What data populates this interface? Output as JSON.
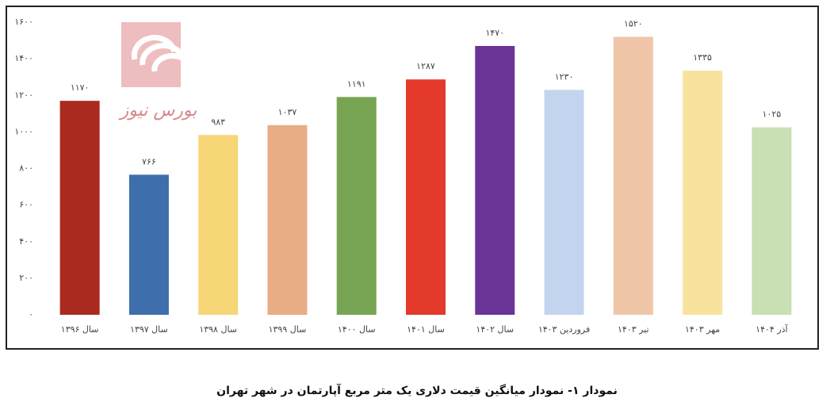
{
  "chart_data": {
    "type": "bar",
    "title": "نمودار ۱- نمودار میانگین قیمت دلاری یک متر مربع آپارتمان در شهر تهران",
    "watermark": "بورس نیوز",
    "categories": [
      "سال ۱۳۹۶",
      "سال ۱۳۹۷",
      "سال ۱۳۹۸",
      "سال ۱۳۹۹",
      "سال ۱۴۰۰",
      "سال ۱۴۰۱",
      "سال ۱۴۰۲",
      "فروردین ۱۴۰۳",
      "تیر ۱۴۰۳",
      "مهر ۱۴۰۳",
      "آذر ۱۴۰۴"
    ],
    "values": [
      1170,
      766,
      983,
      1037,
      1191,
      1287,
      1470,
      1230,
      1520,
      1335,
      1025
    ],
    "value_labels": [
      "۱۱۷۰",
      "۷۶۶",
      "۹۸۳",
      "۱۰۳۷",
      "۱۱۹۱",
      "۱۲۸۷",
      "۱۴۷۰",
      "۱۲۳۰",
      "۱۵۲۰",
      "۱۳۳۵",
      "۱۰۲۵"
    ],
    "colors": [
      "#ab2a1f",
      "#3e6eab",
      "#f6d677",
      "#e9ad86",
      "#78a553",
      "#e33a2b",
      "#6a3597",
      "#c3d5ee",
      "#f0c6a8",
      "#f8e39e",
      "#c9dfb4"
    ],
    "ylim": [
      0,
      1600
    ],
    "yticks": [
      {
        "value": 0,
        "label": "۰"
      },
      {
        "value": 200,
        "label": "۲۰۰"
      },
      {
        "value": 400,
        "label": "۴۰۰"
      },
      {
        "value": 600,
        "label": "۶۰۰"
      },
      {
        "value": 800,
        "label": "۸۰۰"
      },
      {
        "value": 1000,
        "label": "۱۰۰۰"
      },
      {
        "value": 1200,
        "label": "۱۲۰۰"
      },
      {
        "value": 1400,
        "label": "۱۴۰۰"
      },
      {
        "value": 1600,
        "label": "۱۶۰۰"
      }
    ],
    "grid": false
  }
}
